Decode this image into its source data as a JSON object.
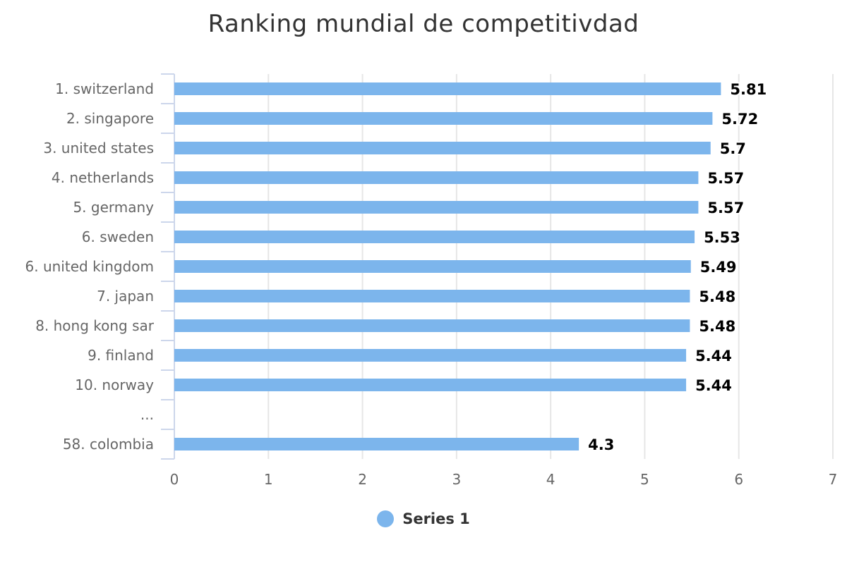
{
  "chart_data": {
    "type": "bar",
    "orientation": "horizontal",
    "title": "Ranking mundial de competitivdad",
    "categories": [
      "1. switzerland",
      "2. singapore",
      "3. united states",
      "4. netherlands",
      "5. germany",
      "6. sweden",
      "6. united kingdom",
      "7. japan",
      "8. hong kong sar",
      "9. finland",
      "10. norway",
      "...",
      "58. colombia"
    ],
    "series": [
      {
        "name": "Series 1",
        "color": "#7cb5ec",
        "values": [
          5.81,
          5.72,
          5.7,
          5.57,
          5.57,
          5.53,
          5.49,
          5.48,
          5.48,
          5.44,
          5.44,
          null,
          4.3
        ]
      }
    ],
    "xlim": [
      0,
      7
    ],
    "x_ticks": [
      0,
      1,
      2,
      3,
      4,
      5,
      6,
      7
    ],
    "grid": true,
    "legend_position": "bottom-center",
    "data_labels": true
  }
}
